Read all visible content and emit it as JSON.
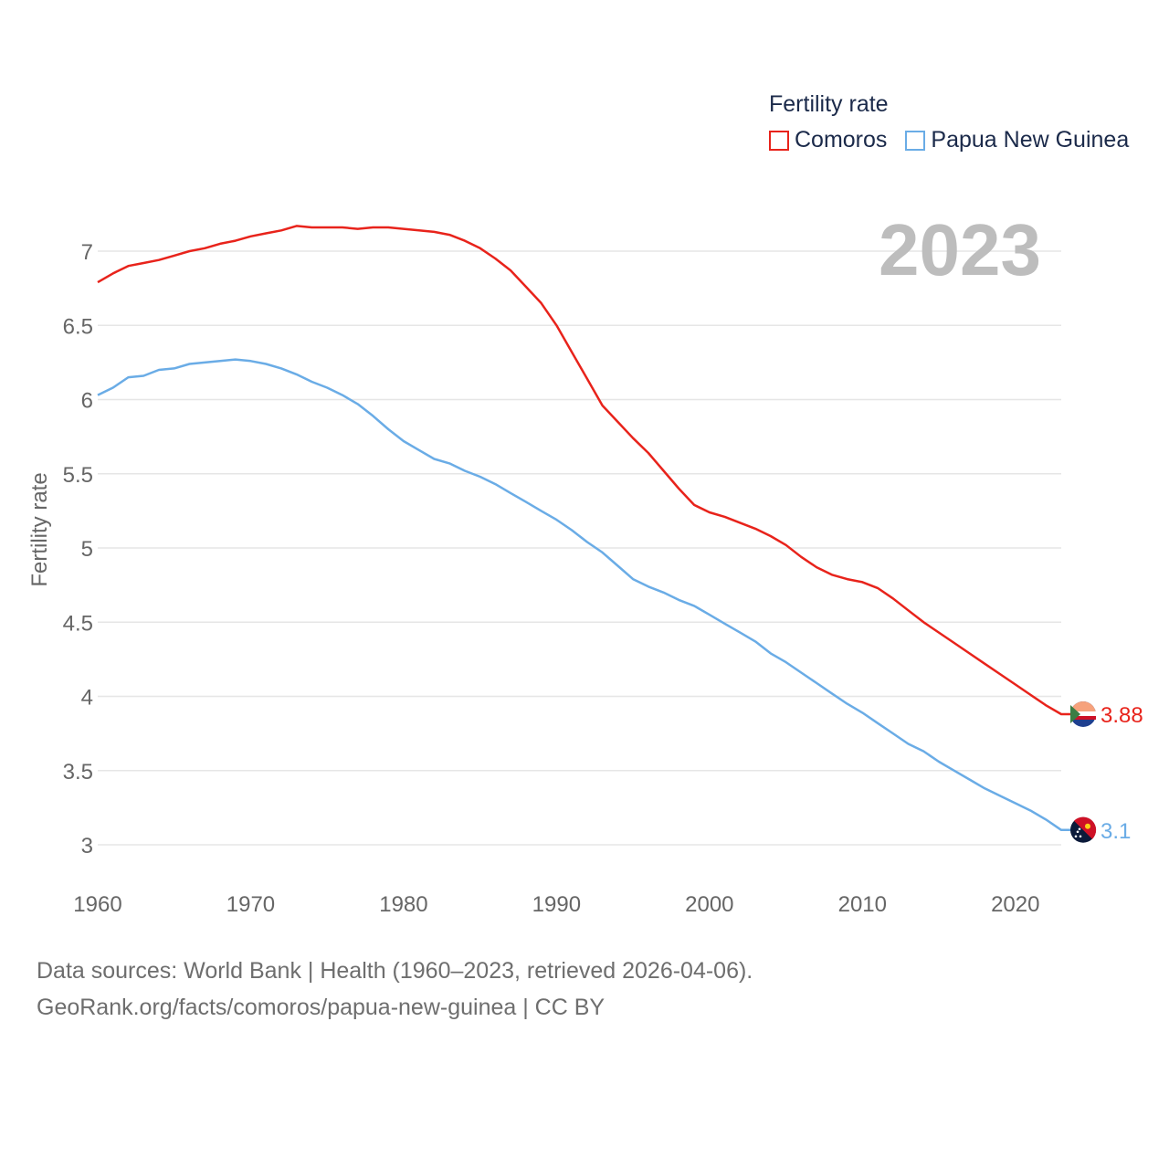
{
  "legend": {
    "title": "Fertility rate",
    "items": [
      {
        "label": "Comoros",
        "color": "#e8231b"
      },
      {
        "label": "Papua New Guinea",
        "color": "#6aace6"
      }
    ]
  },
  "current_year": "2023",
  "footer": {
    "line1": "Data sources: World Bank | Health (1960–2023, retrieved 2026-04-06).",
    "line2": "GeoRank.org/facts/comoros/papua-new-guinea | CC BY"
  },
  "chart_data": {
    "type": "line",
    "title": "",
    "xlabel": "",
    "ylabel": "Fertility rate",
    "xlim": [
      1960,
      2023
    ],
    "ylim": [
      3,
      7.2
    ],
    "xticks": [
      1960,
      1970,
      1980,
      1990,
      2000,
      2010,
      2020
    ],
    "yticks": [
      3,
      3.5,
      4,
      4.5,
      5,
      5.5,
      6,
      6.5,
      7
    ],
    "x": [
      1960,
      1961,
      1962,
      1963,
      1964,
      1965,
      1966,
      1967,
      1968,
      1969,
      1970,
      1971,
      1972,
      1973,
      1974,
      1975,
      1976,
      1977,
      1978,
      1979,
      1980,
      1981,
      1982,
      1983,
      1984,
      1985,
      1986,
      1987,
      1988,
      1989,
      1990,
      1991,
      1992,
      1993,
      1994,
      1995,
      1996,
      1997,
      1998,
      1999,
      2000,
      2001,
      2002,
      2003,
      2004,
      2005,
      2006,
      2007,
      2008,
      2009,
      2010,
      2011,
      2012,
      2013,
      2014,
      2015,
      2016,
      2017,
      2018,
      2019,
      2020,
      2021,
      2022,
      2023
    ],
    "series": [
      {
        "name": "Comoros",
        "color": "#e8231b",
        "end_label": "3.88",
        "values": [
          6.79,
          6.85,
          6.9,
          6.92,
          6.94,
          6.97,
          7.0,
          7.02,
          7.05,
          7.07,
          7.1,
          7.12,
          7.14,
          7.17,
          7.16,
          7.16,
          7.16,
          7.15,
          7.16,
          7.16,
          7.15,
          7.14,
          7.13,
          7.11,
          7.07,
          7.02,
          6.95,
          6.87,
          6.76,
          6.65,
          6.5,
          6.32,
          6.14,
          5.96,
          5.85,
          5.74,
          5.64,
          5.52,
          5.4,
          5.29,
          5.24,
          5.21,
          5.17,
          5.13,
          5.08,
          5.02,
          4.94,
          4.87,
          4.82,
          4.79,
          4.77,
          4.73,
          4.66,
          4.58,
          4.5,
          4.43,
          4.36,
          4.29,
          4.22,
          4.15,
          4.08,
          4.01,
          3.94,
          3.88
        ]
      },
      {
        "name": "Papua New Guinea",
        "color": "#6aace6",
        "end_label": "3.1",
        "values": [
          6.03,
          6.08,
          6.15,
          6.16,
          6.2,
          6.21,
          6.24,
          6.25,
          6.26,
          6.27,
          6.26,
          6.24,
          6.21,
          6.17,
          6.12,
          6.08,
          6.03,
          5.97,
          5.89,
          5.8,
          5.72,
          5.66,
          5.6,
          5.57,
          5.52,
          5.48,
          5.43,
          5.37,
          5.31,
          5.25,
          5.19,
          5.12,
          5.04,
          4.97,
          4.88,
          4.79,
          4.74,
          4.7,
          4.65,
          4.61,
          4.55,
          4.49,
          4.43,
          4.37,
          4.29,
          4.23,
          4.16,
          4.09,
          4.02,
          3.95,
          3.89,
          3.82,
          3.75,
          3.68,
          3.63,
          3.56,
          3.5,
          3.44,
          3.38,
          3.33,
          3.28,
          3.23,
          3.17,
          3.1
        ]
      }
    ]
  }
}
